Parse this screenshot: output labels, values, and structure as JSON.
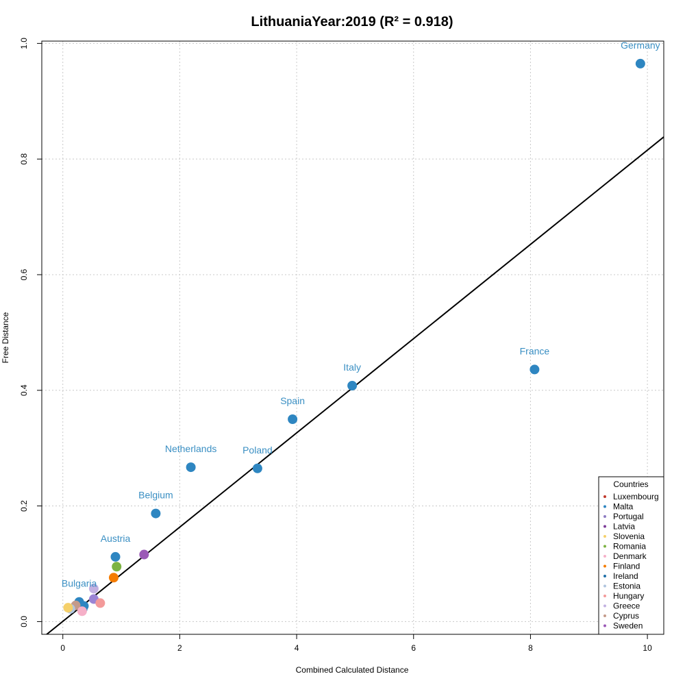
{
  "chart_data": {
    "type": "scatter",
    "title": "LithuaniaYear:2019 (R² = 0.918)",
    "xlabel": "Combined Calculated Distance",
    "ylabel": "Free Distance",
    "xlim": [
      -0.36,
      10.28
    ],
    "ylim": [
      -0.022,
      1.004
    ],
    "xticks": [
      "0",
      "2",
      "4",
      "6",
      "8",
      "10"
    ],
    "yticks": [
      "0.0",
      "0.2",
      "0.4",
      "0.6",
      "0.8",
      "1.0"
    ],
    "grid": true,
    "regression_line": {
      "intercept": 0.0004,
      "slope": 0.0815
    },
    "points": [
      {
        "x": 9.88,
        "y": 0.965,
        "color": "#2e86c1",
        "label": "Germany"
      },
      {
        "x": 8.07,
        "y": 0.436,
        "color": "#2e86c1",
        "label": "France"
      },
      {
        "x": 4.95,
        "y": 0.408,
        "color": "#2e86c1",
        "label": "Italy"
      },
      {
        "x": 3.93,
        "y": 0.35,
        "color": "#2e86c1",
        "label": "Spain"
      },
      {
        "x": 3.33,
        "y": 0.265,
        "color": "#2e86c1",
        "label": "Poland"
      },
      {
        "x": 2.19,
        "y": 0.267,
        "color": "#2e86c1",
        "label": "Netherlands"
      },
      {
        "x": 1.59,
        "y": 0.187,
        "color": "#2e86c1",
        "label": "Belgium"
      },
      {
        "x": 0.9,
        "y": 0.112,
        "color": "#2e86c1",
        "label": "Austria"
      },
      {
        "x": 0.28,
        "y": 0.034,
        "color": "#2e86c1",
        "label": "Bulgaria"
      },
      {
        "x": 0.36,
        "y": 0.027,
        "color": "#2e86c1",
        "label": ""
      },
      {
        "x": 0.34,
        "y": 0.022,
        "color": "#2e86c1",
        "label": ""
      },
      {
        "x": 1.39,
        "y": 0.116,
        "color": "#9b59b6",
        "label": ""
      },
      {
        "x": 0.92,
        "y": 0.095,
        "color": "#7cb342",
        "label": ""
      },
      {
        "x": 0.87,
        "y": 0.076,
        "color": "#f57c00",
        "label": ""
      },
      {
        "x": 0.53,
        "y": 0.057,
        "color": "#c3b1e1",
        "label": ""
      },
      {
        "x": 0.53,
        "y": 0.039,
        "color": "#9b84d4",
        "label": ""
      },
      {
        "x": 0.64,
        "y": 0.032,
        "color": "#f39a9a",
        "label": ""
      },
      {
        "x": 0.22,
        "y": 0.028,
        "color": "#c49a8a",
        "label": ""
      },
      {
        "x": 0.33,
        "y": 0.018,
        "color": "#f5b0c8",
        "label": ""
      },
      {
        "x": 0.13,
        "y": 0.022,
        "color": "#b0c4de",
        "label": ""
      },
      {
        "x": 0.09,
        "y": 0.024,
        "color": "#f5d06a",
        "label": ""
      }
    ],
    "legend": {
      "title": "Countries",
      "placement": "bottom-right",
      "entries": [
        {
          "name": "Luxembourg",
          "color": "#c0392b"
        },
        {
          "name": "Malta",
          "color": "#2e86c1"
        },
        {
          "name": "Portugal",
          "color": "#8e7cc3"
        },
        {
          "name": "Latvia",
          "color": "#7d3c98"
        },
        {
          "name": "Slovenia",
          "color": "#f5d06a"
        },
        {
          "name": "Romania",
          "color": "#7cb342"
        },
        {
          "name": "Denmark",
          "color": "#f5b0c8"
        },
        {
          "name": "Finland",
          "color": "#f57c00"
        },
        {
          "name": "Ireland",
          "color": "#1f6fa8"
        },
        {
          "name": "Estonia",
          "color": "#b0c4de"
        },
        {
          "name": "Hungary",
          "color": "#f39a9a"
        },
        {
          "name": "Greece",
          "color": "#c3b1e1"
        },
        {
          "name": "Cyprus",
          "color": "#c49a8a"
        },
        {
          "name": "Sweden",
          "color": "#9b59b6"
        }
      ]
    }
  }
}
